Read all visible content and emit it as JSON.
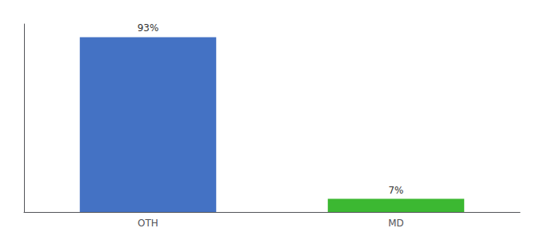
{
  "chart_data": {
    "type": "bar",
    "categories": [
      "OTH",
      "MD"
    ],
    "values": [
      93,
      7
    ],
    "value_labels": [
      "93%",
      "7%"
    ],
    "colors": [
      "#4472c4",
      "#3cb832"
    ],
    "ylim": [
      0,
      100
    ],
    "grid": false,
    "data_labels": true,
    "tick_labels": "x"
  }
}
